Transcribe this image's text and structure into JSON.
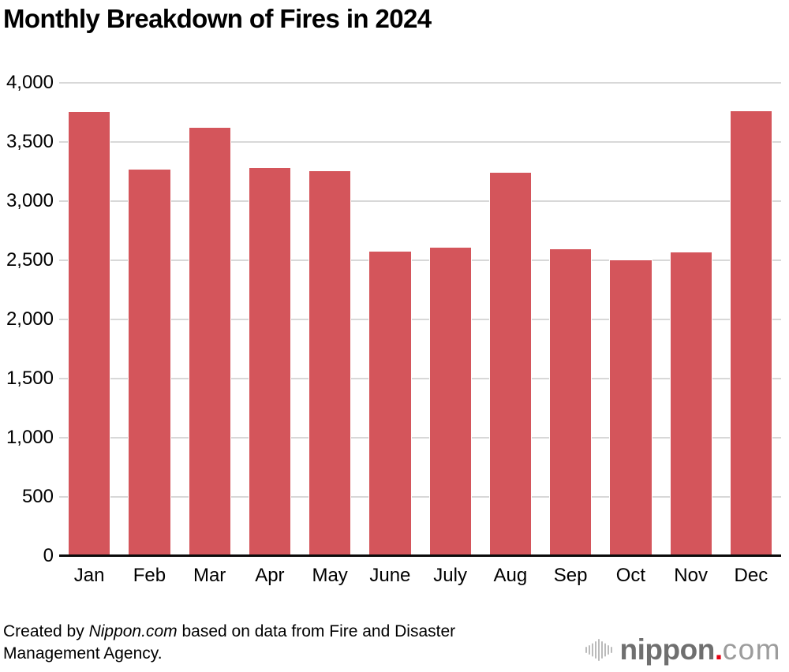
{
  "chart_data": {
    "type": "bar",
    "title": "Monthly Breakdown of Fires in 2024",
    "categories": [
      "Jan",
      "Feb",
      "Mar",
      "Apr",
      "May",
      "June",
      "July",
      "Aug",
      "Sep",
      "Oct",
      "Nov",
      "Dec"
    ],
    "values": [
      3760,
      3275,
      3630,
      3290,
      3260,
      2580,
      2615,
      3245,
      2600,
      2510,
      2575,
      3770
    ],
    "xlabel": "",
    "ylabel": "",
    "ylim": [
      0,
      4000
    ],
    "ytick_step": 500,
    "ytick_labels": [
      "0",
      "500",
      "1,000",
      "1,500",
      "2,000",
      "2,500",
      "3,000",
      "3,500",
      "4,000"
    ],
    "bar_color": "#d4555b",
    "grid": true,
    "legend": false
  },
  "colors": {
    "bar": "#d4555b",
    "gridline": "#d8d8d8",
    "axis": "#0b0b0b",
    "text": "#000000"
  },
  "footer": {
    "credit": {
      "prefix": "Created by ",
      "source": "Nippon.com",
      "suffix_line1": " based on data from Fire and Disaster",
      "suffix_line2": "Management Agency."
    },
    "logo": {
      "name": "nippon",
      "dot": ".",
      "tld": "com",
      "icon": "soundwave-bars-icon",
      "colors": {
        "name": "#6f6f6f",
        "dot": "#e60012",
        "tld": "#9c9c9c",
        "icon": "#bbbbbb"
      }
    }
  }
}
